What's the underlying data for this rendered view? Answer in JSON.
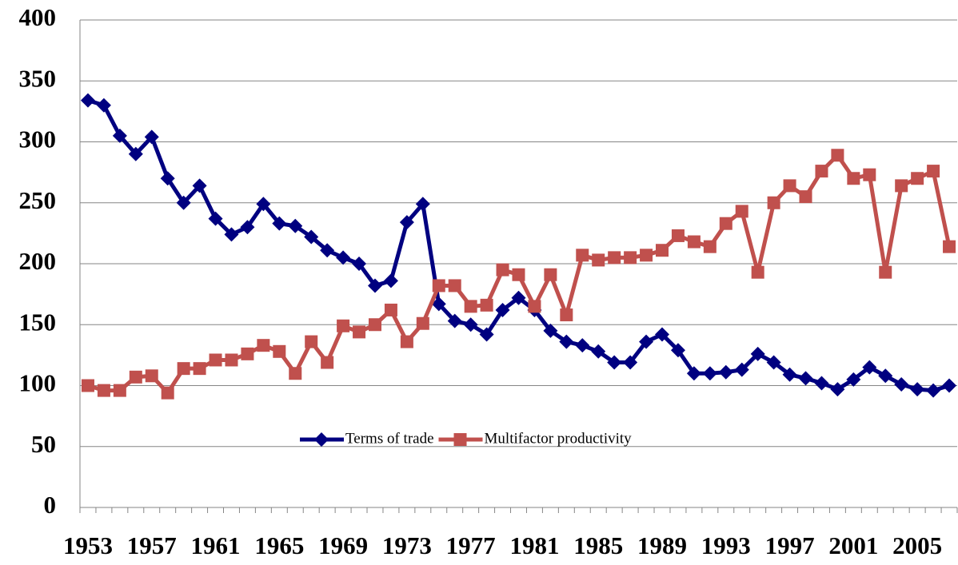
{
  "chart_data": {
    "type": "line",
    "categories": [
      1953,
      null,
      null,
      null,
      1957,
      null,
      null,
      null,
      1961,
      null,
      null,
      null,
      1965,
      null,
      null,
      null,
      1969,
      null,
      null,
      null,
      1973,
      null,
      null,
      null,
      1977,
      null,
      null,
      null,
      1981,
      null,
      null,
      null,
      1985,
      null,
      null,
      null,
      1989,
      null,
      null,
      null,
      1993,
      null,
      null,
      null,
      1997,
      null,
      null,
      null,
      2001,
      null,
      null,
      null,
      2005,
      null,
      null
    ],
    "series": [
      {
        "name": "Terms of trade",
        "color": "#000080",
        "marker": "diamond",
        "values": [
          334,
          330,
          305,
          290,
          304,
          270,
          250,
          264,
          237,
          224,
          230,
          249,
          233,
          231,
          222,
          211,
          205,
          200,
          182,
          186,
          234,
          249,
          167,
          153,
          150,
          142,
          162,
          172,
          162,
          145,
          136,
          133,
          128,
          119,
          119,
          136,
          142,
          129,
          110,
          110,
          111,
          113,
          126,
          119,
          109,
          106,
          102,
          97,
          105,
          115,
          108,
          101,
          97,
          96,
          100
        ]
      },
      {
        "name": "Multifactor productivity",
        "color": "#c0504d",
        "marker": "square",
        "values": [
          100,
          96,
          96,
          107,
          108,
          94,
          114,
          114,
          121,
          121,
          126,
          133,
          128,
          110,
          136,
          119,
          149,
          144,
          150,
          162,
          136,
          151,
          182,
          182,
          165,
          166,
          195,
          191,
          165,
          191,
          158,
          207,
          203,
          205,
          205,
          207,
          211,
          223,
          218,
          214,
          233,
          243,
          193,
          250,
          264,
          255,
          276,
          289,
          270,
          273,
          193,
          264,
          270,
          276,
          214
        ]
      }
    ],
    "ylim": [
      0,
      400
    ],
    "yticks": [
      0,
      50,
      100,
      150,
      200,
      250,
      300,
      350,
      400
    ],
    "grid": true
  }
}
